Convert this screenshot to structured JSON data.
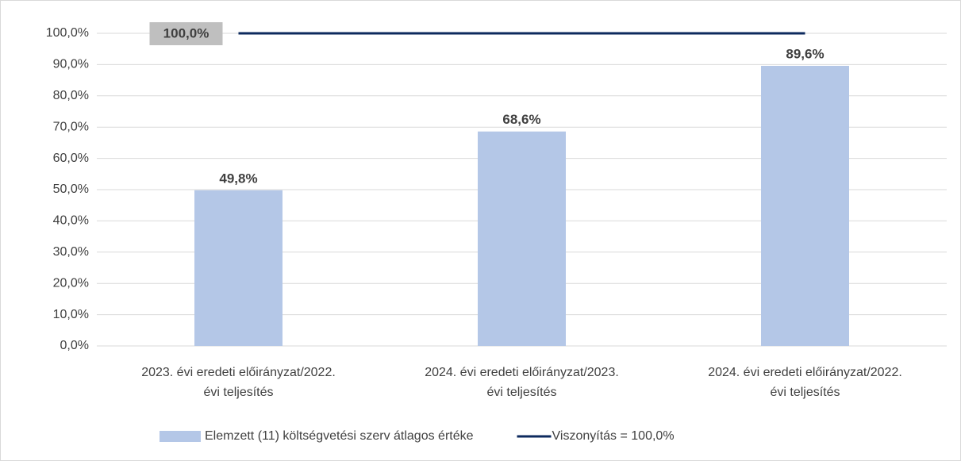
{
  "chart_data": {
    "type": "bar_line",
    "categories": [
      "2023. évi eredeti előirányzat/2022. évi teljesítés",
      "2024. évi eredeti előirányzat/2023. évi teljesítés",
      "2024. évi eredeti előirányzat/2022. évi teljesítés"
    ],
    "series": [
      {
        "name": "Elemzett (11) költségvetési szerv átlagos értéke",
        "type": "bar",
        "color": "#b4c7e7",
        "values": [
          49.8,
          68.6,
          89.6
        ],
        "value_labels": [
          "49,8%",
          "68,6%",
          "89,6%"
        ]
      },
      {
        "name": "Viszonyítás = 100,0%",
        "type": "line",
        "color": "#0d2a5e",
        "values": [
          100,
          100,
          100
        ],
        "value_labels": [
          "100,0%",
          null,
          null
        ]
      }
    ],
    "ylim": [
      0,
      100
    ],
    "yticks": [
      {
        "value": 0,
        "label": "0,0%"
      },
      {
        "value": 10,
        "label": "10,0%"
      },
      {
        "value": 20,
        "label": "20,0%"
      },
      {
        "value": 30,
        "label": "30,0%"
      },
      {
        "value": 40,
        "label": "40,0%"
      },
      {
        "value": 50,
        "label": "50,0%"
      },
      {
        "value": 60,
        "label": "60,0%"
      },
      {
        "value": 70,
        "label": "70,0%"
      },
      {
        "value": 80,
        "label": "80,0%"
      },
      {
        "value": 90,
        "label": "90,0%"
      },
      {
        "value": 100,
        "label": "100,0%"
      }
    ],
    "grid": true,
    "legend": "bottom"
  }
}
